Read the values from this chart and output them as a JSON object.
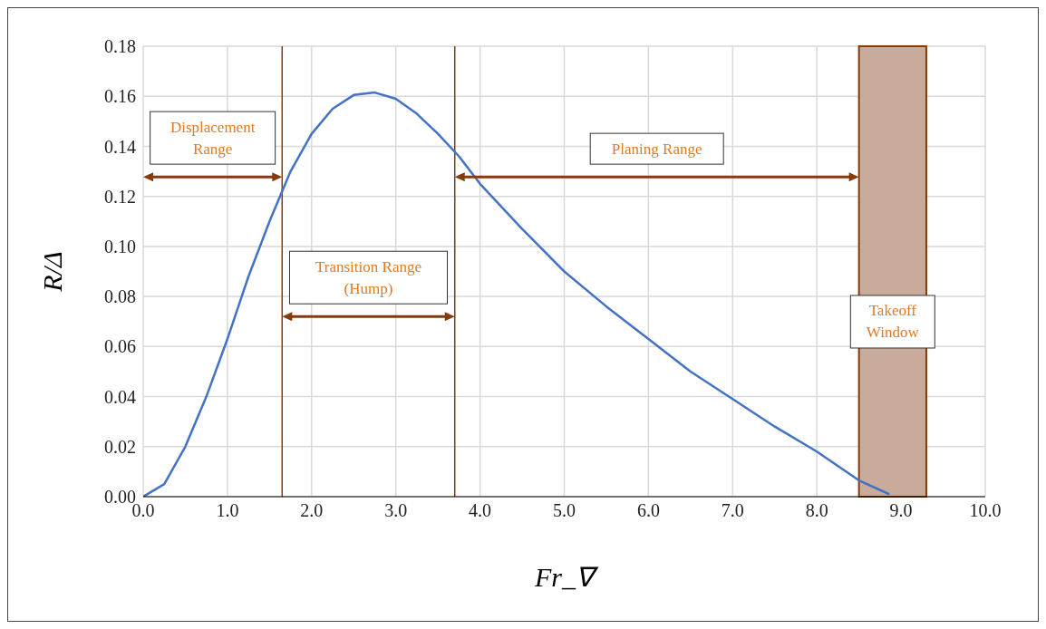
{
  "chart_data": {
    "type": "line",
    "xlabel": "Fr_∇",
    "ylabel": "R/Δ",
    "x": [
      0,
      0.25,
      0.5,
      0.75,
      1.0,
      1.25,
      1.5,
      1.75,
      2.0,
      2.25,
      2.5,
      2.75,
      3.0,
      3.25,
      3.5,
      3.75,
      4.0,
      4.5,
      5.0,
      5.5,
      6.0,
      6.5,
      7.0,
      7.5,
      8.0,
      8.5,
      8.86
    ],
    "series": [
      {
        "color": "#4472c4",
        "values": [
          0,
          0.005,
          0.02,
          0.04,
          0.063,
          0.088,
          0.11,
          0.13,
          0.145,
          0.155,
          0.1605,
          0.1615,
          0.159,
          0.153,
          0.145,
          0.136,
          0.125,
          0.107,
          0.09,
          0.076,
          0.063,
          0.05,
          0.039,
          0.028,
          0.018,
          0.0065,
          0.001
        ]
      }
    ],
    "xlim": [
      0,
      10
    ],
    "xticks": [
      {
        "value": 0,
        "label": "0.0"
      },
      {
        "value": 1,
        "label": "1.0"
      },
      {
        "value": 2,
        "label": "2.0"
      },
      {
        "value": 3,
        "label": "3.0"
      },
      {
        "value": 4,
        "label": "4.0"
      },
      {
        "value": 5,
        "label": "5.0"
      },
      {
        "value": 6,
        "label": "6.0"
      },
      {
        "value": 7,
        "label": "7.0"
      },
      {
        "value": 8,
        "label": "8.0"
      },
      {
        "value": 9,
        "label": "9.0"
      },
      {
        "value": 10,
        "label": "10.0"
      }
    ],
    "ylim": [
      0,
      0.18
    ],
    "yticks": [
      {
        "value": 0,
        "label": "0.00"
      },
      {
        "value": 0.02,
        "label": "0.02"
      },
      {
        "value": 0.04,
        "label": "0.04"
      },
      {
        "value": 0.06,
        "label": "0.06"
      },
      {
        "value": 0.08,
        "label": "0.08"
      },
      {
        "value": 0.1,
        "label": "0.10"
      },
      {
        "value": 0.12,
        "label": "0.12"
      },
      {
        "value": 0.14,
        "label": "0.14"
      },
      {
        "value": 0.16,
        "label": "0.16"
      },
      {
        "value": 0.18,
        "label": "0.18"
      }
    ],
    "grid": true,
    "marker": "none",
    "line_style": "solid",
    "ref_lines": [
      {
        "axis": "x",
        "value": 1.65,
        "color": "#843c0c"
      },
      {
        "axis": "x",
        "value": 3.7,
        "color": "#843c0c"
      }
    ],
    "bands": [
      {
        "axis": "x",
        "from": 8.5,
        "to": 9.3,
        "label": "Takeoff Window",
        "color": "#c9ab9b"
      }
    ],
    "annotations": [
      "Displacement Range",
      "Transition Range (Hump)",
      "Planing Range"
    ]
  }
}
